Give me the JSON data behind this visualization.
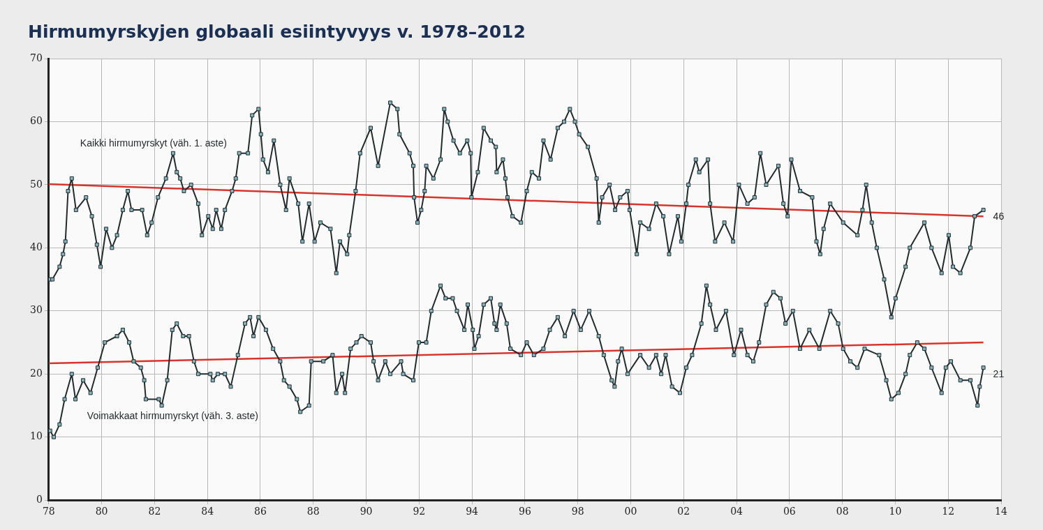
{
  "chart_data": {
    "type": "line",
    "title": "Hirmumyrskyjen globaali esiintyvyys v. 1978–2012",
    "xlim": [
      1978,
      2014
    ],
    "xticks": [
      {
        "value": 1978,
        "label": "78"
      },
      {
        "value": 1980,
        "label": "80"
      },
      {
        "value": 1982,
        "label": "82"
      },
      {
        "value": 1984,
        "label": "84"
      },
      {
        "value": 1986,
        "label": "86"
      },
      {
        "value": 1988,
        "label": "88"
      },
      {
        "value": 1990,
        "label": "90"
      },
      {
        "value": 1992,
        "label": "92"
      },
      {
        "value": 1994,
        "label": "94"
      },
      {
        "value": 1996,
        "label": "96"
      },
      {
        "value": 1998,
        "label": "98"
      },
      {
        "value": 2000,
        "label": "00"
      },
      {
        "value": 2002,
        "label": "02"
      },
      {
        "value": 2004,
        "label": "04"
      },
      {
        "value": 2006,
        "label": "06"
      },
      {
        "value": 2008,
        "label": "08"
      },
      {
        "value": 2010,
        "label": "10"
      },
      {
        "value": 2012,
        "label": "12"
      },
      {
        "value": 2014,
        "label": "14"
      }
    ],
    "ylim": [
      0,
      70
    ],
    "yticks": [
      0,
      10,
      20,
      30,
      40,
      50,
      60,
      70
    ],
    "grid": true,
    "legend": false,
    "marker": "square",
    "line_style": "solid",
    "series": [
      {
        "name": "Kaikki hirmumyrskyt (väh. 1. aste)",
        "color": "#222b2e",
        "x": [
          1978.05,
          1978.14,
          1978.41,
          1978.54,
          1978.63,
          1978.73,
          1978.87,
          1979.03,
          1979.41,
          1979.63,
          1979.82,
          1979.96,
          1980.17,
          1980.39,
          1980.58,
          1980.8,
          1980.99,
          1981.13,
          1981.53,
          1981.72,
          1981.89,
          1982.13,
          1982.43,
          1982.7,
          1982.84,
          1982.97,
          1983.11,
          1983.38,
          1983.65,
          1983.79,
          1984.03,
          1984.2,
          1984.33,
          1984.52,
          1984.66,
          1984.93,
          1985.07,
          1985.2,
          1985.53,
          1985.69,
          1985.93,
          1986.02,
          1986.1,
          1986.29,
          1986.51,
          1986.75,
          1986.97,
          1987.1,
          1987.43,
          1987.59,
          1987.84,
          1988.05,
          1988.27,
          1988.65,
          1988.87,
          1989.01,
          1989.28,
          1989.36,
          1989.6,
          1989.77,
          1990.17,
          1990.45,
          1990.91,
          1991.18,
          1991.26,
          1991.64,
          1991.78,
          1991.81,
          1991.94,
          1992.08,
          1992.21,
          1992.27,
          1992.54,
          1992.81,
          1992.95,
          1993.08,
          1993.3,
          1993.54,
          1993.82,
          1993.95,
          1993.98,
          1994.22,
          1994.44,
          1994.71,
          1994.9,
          1994.93,
          1995.17,
          1995.26,
          1995.34,
          1995.53,
          1995.85,
          1996.07,
          1996.26,
          1996.53,
          1996.7,
          1996.97,
          1997.24,
          1997.48,
          1997.7,
          1997.89,
          1998.05,
          1998.38,
          1998.71,
          1998.79,
          1998.92,
          1999.2,
          1999.41,
          1999.6,
          1999.88,
          1999.96,
          2000.23,
          2000.36,
          2000.69,
          2000.96,
          2001.23,
          2001.45,
          2001.78,
          2001.91,
          2002.1,
          2002.18,
          2002.46,
          2002.59,
          2002.92,
          2003.0,
          2003.19,
          2003.54,
          2003.87,
          2004.09,
          2004.41,
          2004.68,
          2004.9,
          2005.12,
          2005.58,
          2005.77,
          2005.93,
          2006.07,
          2006.4,
          2006.86,
          2007.02,
          2007.16,
          2007.29,
          2007.54,
          2008.03,
          2008.57,
          2008.76,
          2008.9,
          2009.11,
          2009.3,
          2009.58,
          2009.85,
          2010.01,
          2010.39,
          2010.55,
          2011.1,
          2011.37,
          2011.75,
          2012.02,
          2012.18,
          2012.46,
          2012.84,
          2013.0,
          2013.33
        ],
        "values": [
          35,
          35,
          37,
          39,
          41,
          49,
          51,
          46,
          48,
          45,
          40.5,
          37,
          43,
          40,
          42,
          46,
          49,
          46,
          46,
          42,
          44,
          48,
          51,
          55,
          52,
          51,
          49,
          50,
          47,
          42,
          45,
          43,
          46,
          43,
          46,
          49,
          51,
          55,
          55,
          61,
          62,
          58,
          54,
          52,
          57,
          50,
          46,
          51,
          47,
          41,
          47,
          41,
          44,
          43,
          36,
          41,
          39,
          42,
          49,
          55,
          59,
          53,
          63,
          62,
          58,
          55,
          53,
          48,
          44,
          46,
          49,
          53,
          51,
          54,
          62,
          60,
          57,
          55,
          57,
          55,
          48,
          52,
          59,
          57,
          56,
          52,
          54,
          51,
          48,
          45,
          44,
          49,
          52,
          51,
          57,
          54,
          59,
          60,
          62,
          60,
          58,
          56,
          51,
          44,
          48,
          50,
          46,
          48,
          49,
          46,
          39,
          44,
          43,
          47,
          45,
          39,
          45,
          41,
          47,
          50,
          54,
          52,
          54,
          47,
          41,
          44,
          41,
          50,
          47,
          48,
          55,
          50,
          53,
          47,
          45,
          54,
          49,
          48,
          41,
          39,
          43,
          47,
          44,
          42,
          46,
          50,
          44,
          40,
          35,
          29,
          32,
          37,
          40,
          44,
          40,
          36,
          42,
          37,
          36,
          40,
          45,
          46
        ],
        "value_labels": [
          null,
          null,
          null,
          null,
          null,
          null,
          null,
          null,
          null,
          null,
          null,
          null,
          null,
          null,
          null,
          null,
          null,
          null,
          null,
          null,
          null,
          null,
          null,
          null,
          null,
          null,
          null,
          null,
          null,
          null,
          null,
          null,
          null,
          null,
          null,
          null,
          null,
          null,
          null,
          null,
          null,
          null,
          null,
          null,
          null,
          null,
          null,
          null,
          null,
          null,
          null,
          null,
          null,
          null,
          null,
          null,
          null,
          null,
          null,
          null,
          null,
          null,
          null,
          null,
          null,
          null,
          null,
          null,
          null,
          null,
          null,
          null,
          null,
          null,
          null,
          null,
          null,
          null,
          null,
          null,
          null,
          null,
          null,
          null,
          null,
          null,
          null,
          null,
          null,
          null,
          null,
          null,
          null,
          null,
          null,
          null,
          null,
          null,
          null,
          null,
          null,
          null,
          null,
          null,
          null,
          null,
          null,
          null,
          null,
          null,
          null,
          null,
          null,
          null,
          null,
          null,
          null,
          null,
          null,
          null,
          null,
          null,
          null,
          null,
          null,
          null,
          null,
          null,
          null,
          null,
          null,
          null,
          null,
          null,
          null,
          null,
          null,
          null,
          null,
          null,
          null,
          null,
          null,
          null,
          null,
          null,
          null,
          null,
          null,
          null,
          null,
          null,
          null,
          null,
          null,
          null,
          null,
          null,
          null,
          null,
          null,
          "46"
        ]
      },
      {
        "name": "Voimakkaat hirmumyrskyt (väh. 3. aste)",
        "color": "#222b2e",
        "x": [
          1978.05,
          1978.19,
          1978.41,
          1978.6,
          1978.87,
          1979.01,
          1979.3,
          1979.58,
          1979.85,
          1980.12,
          1980.58,
          1980.8,
          1981.04,
          1981.21,
          1981.48,
          1981.61,
          1981.67,
          1982.16,
          1982.27,
          1982.48,
          1982.67,
          1982.84,
          1983.08,
          1983.3,
          1983.49,
          1983.65,
          1984.11,
          1984.2,
          1984.39,
          1984.66,
          1984.88,
          1985.15,
          1985.42,
          1985.61,
          1985.74,
          1985.93,
          1986.21,
          1986.48,
          1986.75,
          1986.89,
          1987.1,
          1987.38,
          1987.51,
          1987.84,
          1987.92,
          1988.38,
          1988.73,
          1988.87,
          1989.09,
          1989.2,
          1989.41,
          1989.63,
          1989.82,
          1990.17,
          1990.28,
          1990.45,
          1990.72,
          1990.91,
          1991.32,
          1991.4,
          1991.78,
          1991.99,
          1992.27,
          1992.46,
          1992.81,
          1993.0,
          1993.27,
          1993.43,
          1993.71,
          1993.84,
          1994.03,
          1994.09,
          1994.25,
          1994.44,
          1994.71,
          1994.85,
          1994.93,
          1995.07,
          1995.31,
          1995.45,
          1995.85,
          1996.07,
          1996.34,
          1996.7,
          1996.94,
          1997.24,
          1997.51,
          1997.84,
          1998.11,
          1998.43,
          1998.79,
          1998.98,
          1999.28,
          1999.39,
          1999.52,
          1999.66,
          1999.88,
          2000.36,
          2000.69,
          2000.96,
          2001.15,
          2001.32,
          2001.56,
          2001.86,
          2002.1,
          2002.32,
          2002.67,
          2002.86,
          2003.0,
          2003.22,
          2003.6,
          2003.9,
          2004.17,
          2004.41,
          2004.63,
          2004.85,
          2005.12,
          2005.39,
          2005.66,
          2005.85,
          2006.13,
          2006.4,
          2006.75,
          2007.13,
          2007.54,
          2007.84,
          2008.03,
          2008.3,
          2008.57,
          2008.84,
          2009.39,
          2009.66,
          2009.85,
          2010.12,
          2010.39,
          2010.55,
          2010.83,
          2011.1,
          2011.37,
          2011.75,
          2011.91,
          2012.1,
          2012.46,
          2012.84,
          2013.11,
          2013.19,
          2013.33
        ],
        "values": [
          11,
          10,
          12,
          16,
          20,
          16,
          19,
          17,
          21,
          25,
          26,
          27,
          25,
          22,
          21,
          19,
          16,
          16,
          15,
          19,
          27,
          28,
          26,
          26,
          22,
          20,
          20,
          19,
          20,
          20,
          18,
          23,
          28,
          29,
          26,
          29,
          27,
          24,
          22,
          19,
          18,
          16,
          14,
          15,
          22,
          22,
          23,
          17,
          20,
          17,
          24,
          25,
          26,
          25,
          22,
          19,
          22,
          20,
          22,
          20,
          19,
          25,
          25,
          30,
          34,
          32,
          32,
          30,
          27,
          31,
          27,
          24,
          26,
          31,
          32,
          28,
          27,
          31,
          28,
          24,
          23,
          25,
          23,
          24,
          27,
          29,
          26,
          30,
          27,
          30,
          26,
          23,
          19,
          18,
          22,
          24,
          20,
          23,
          21,
          23,
          20,
          23,
          18,
          17,
          21,
          23,
          28,
          34,
          31,
          27,
          30,
          23,
          27,
          23,
          22,
          25,
          31,
          33,
          32,
          28,
          30,
          24,
          27,
          24,
          30,
          28,
          24,
          22,
          21,
          24,
          23,
          19,
          16,
          17,
          20,
          23,
          25,
          24,
          21,
          17,
          21,
          22,
          19,
          19,
          15,
          18,
          21
        ],
        "value_labels": [
          null,
          null,
          null,
          null,
          null,
          null,
          null,
          null,
          null,
          null,
          null,
          null,
          null,
          null,
          null,
          null,
          null,
          null,
          null,
          null,
          null,
          null,
          null,
          null,
          null,
          null,
          null,
          null,
          null,
          null,
          null,
          null,
          null,
          null,
          null,
          null,
          null,
          null,
          null,
          null,
          null,
          null,
          null,
          null,
          null,
          null,
          null,
          null,
          null,
          null,
          null,
          null,
          null,
          null,
          null,
          null,
          null,
          null,
          null,
          null,
          null,
          null,
          null,
          null,
          null,
          null,
          null,
          null,
          null,
          null,
          null,
          null,
          null,
          null,
          null,
          null,
          null,
          null,
          null,
          null,
          null,
          null,
          null,
          null,
          null,
          null,
          null,
          null,
          null,
          null,
          null,
          null,
          null,
          null,
          null,
          null,
          null,
          null,
          null,
          null,
          null,
          null,
          null,
          null,
          null,
          null,
          null,
          null,
          null,
          null,
          null,
          null,
          null,
          null,
          null,
          null,
          null,
          null,
          null,
          null,
          null,
          null,
          null,
          null,
          null,
          null,
          null,
          null,
          null,
          null,
          null,
          null,
          null,
          null,
          null,
          null,
          null,
          null,
          null,
          null,
          null,
          null,
          null,
          null,
          null,
          null,
          "21"
        ]
      },
      {
        "type": "line",
        "color": "#d9342b",
        "marker": "none",
        "x": [
          1978,
          2013.33
        ],
        "values": [
          50.1,
          45.0
        ]
      },
      {
        "type": "line",
        "color": "#d9342b",
        "marker": "none",
        "x": [
          1978,
          2013.33
        ],
        "values": [
          21.7,
          25.0
        ]
      }
    ]
  }
}
